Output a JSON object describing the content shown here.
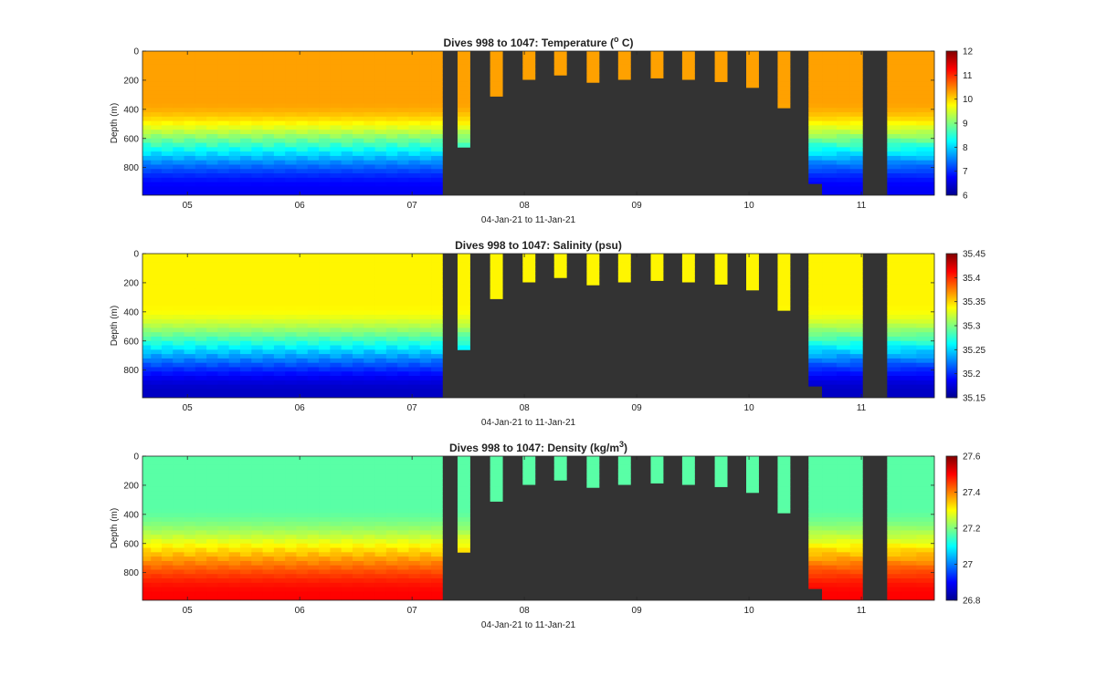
{
  "chart_data": [
    {
      "type": "heatmap",
      "variable": "temperature",
      "title_main": "Dives 998 to 1047: Temperature (",
      "title_sup": "o",
      "title_tail": " C)",
      "xlabel": "04-Jan-21 to 11-Jan-21",
      "ylabel": "Depth (m)",
      "x_ticks": [
        "05",
        "06",
        "07",
        "08",
        "09",
        "10",
        "11"
      ],
      "y_ticks": [
        "0",
        "200",
        "400",
        "600",
        "800"
      ],
      "ylim": [
        0,
        990
      ],
      "xlim": [
        4.6,
        11.65
      ],
      "colorbar": {
        "min": 6,
        "max": 12,
        "ticks": [
          "12",
          "11",
          "10",
          "9",
          "8",
          "7",
          "6"
        ]
      },
      "surface_value": 10.3,
      "deep_value": 6.7
    },
    {
      "type": "heatmap",
      "variable": "salinity",
      "title_main": "Dives 998 to 1047: Salinity (psu)",
      "title_sup": "",
      "title_tail": "",
      "xlabel": "04-Jan-21 to 11-Jan-21",
      "ylabel": "Depth (m)",
      "x_ticks": [
        "05",
        "06",
        "07",
        "08",
        "09",
        "10",
        "11"
      ],
      "y_ticks": [
        "0",
        "200",
        "400",
        "600",
        "800"
      ],
      "ylim": [
        0,
        990
      ],
      "xlim": [
        4.6,
        11.65
      ],
      "colorbar": {
        "min": 35.15,
        "max": 35.45,
        "ticks": [
          "35.45",
          "35.4",
          "35.35",
          "35.3",
          "35.25",
          "35.2",
          "35.15"
        ]
      },
      "surface_value": 35.34,
      "deep_value": 35.17
    },
    {
      "type": "heatmap",
      "variable": "density",
      "title_main": "Dives 998 to 1047: Density (kg/m",
      "title_sup": "3",
      "title_tail": ")",
      "xlabel": "04-Jan-21 to 11-Jan-21",
      "ylabel": "Depth (m)",
      "x_ticks": [
        "05",
        "06",
        "07",
        "08",
        "09",
        "10",
        "11"
      ],
      "y_ticks": [
        "0",
        "200",
        "400",
        "600",
        "800"
      ],
      "ylim": [
        0,
        990
      ],
      "xlim": [
        4.6,
        11.65
      ],
      "colorbar": {
        "min": 26.8,
        "max": 27.6,
        "ticks": [
          "27.6",
          "27.4",
          "27.2",
          "27",
          "26.8"
        ]
      },
      "surface_value": 27.17,
      "deep_value": 27.5
    }
  ],
  "dives": [
    {
      "day": 4.63,
      "max_depth": 985
    },
    {
      "day": 4.72,
      "max_depth": 985
    },
    {
      "day": 4.82,
      "max_depth": 985
    },
    {
      "day": 4.92,
      "max_depth": 985
    },
    {
      "day": 5.02,
      "max_depth": 985
    },
    {
      "day": 5.12,
      "max_depth": 985
    },
    {
      "day": 5.22,
      "max_depth": 985
    },
    {
      "day": 5.32,
      "max_depth": 985
    },
    {
      "day": 5.42,
      "max_depth": 985
    },
    {
      "day": 5.52,
      "max_depth": 985
    },
    {
      "day": 5.62,
      "max_depth": 985
    },
    {
      "day": 5.72,
      "max_depth": 985
    },
    {
      "day": 5.82,
      "max_depth": 985
    },
    {
      "day": 5.92,
      "max_depth": 985
    },
    {
      "day": 6.02,
      "max_depth": 985
    },
    {
      "day": 6.12,
      "max_depth": 985
    },
    {
      "day": 6.22,
      "max_depth": 985
    },
    {
      "day": 6.32,
      "max_depth": 985
    },
    {
      "day": 6.42,
      "max_depth": 985
    },
    {
      "day": 6.52,
      "max_depth": 985
    },
    {
      "day": 6.62,
      "max_depth": 985
    },
    {
      "day": 6.72,
      "max_depth": 985
    },
    {
      "day": 6.82,
      "max_depth": 985
    },
    {
      "day": 6.92,
      "max_depth": 985
    },
    {
      "day": 7.02,
      "max_depth": 985
    },
    {
      "day": 7.12,
      "max_depth": 985
    },
    {
      "day": 7.22,
      "max_depth": 985
    },
    {
      "day": 7.46,
      "max_depth": 660
    },
    {
      "day": 7.75,
      "max_depth": 310
    },
    {
      "day": 8.04,
      "max_depth": 195
    },
    {
      "day": 8.32,
      "max_depth": 165
    },
    {
      "day": 8.61,
      "max_depth": 215
    },
    {
      "day": 8.89,
      "max_depth": 195
    },
    {
      "day": 9.18,
      "max_depth": 185
    },
    {
      "day": 9.46,
      "max_depth": 195
    },
    {
      "day": 9.75,
      "max_depth": 210
    },
    {
      "day": 10.03,
      "max_depth": 250
    },
    {
      "day": 10.31,
      "max_depth": 390
    },
    {
      "day": 10.58,
      "max_depth": 910
    },
    {
      "day": 10.72,
      "max_depth": 985
    },
    {
      "day": 10.84,
      "max_depth": 985
    },
    {
      "day": 10.96,
      "max_depth": 985
    },
    {
      "day": 11.28,
      "max_depth": 985
    },
    {
      "day": 11.42,
      "max_depth": 985
    },
    {
      "day": 11.56,
      "max_depth": 985
    }
  ]
}
